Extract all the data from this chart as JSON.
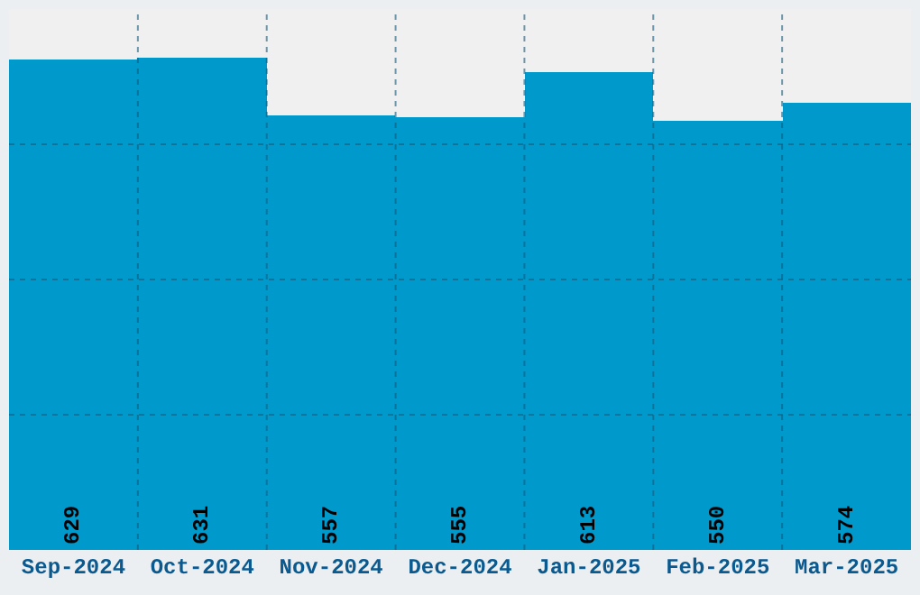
{
  "chart_data": {
    "type": "bar",
    "categories": [
      "Sep-2024",
      "Oct-2024",
      "Nov-2024",
      "Dec-2024",
      "Jan-2025",
      "Feb-2025",
      "Mar-2025"
    ],
    "values": [
      629,
      631,
      557,
      555,
      613,
      550,
      574
    ],
    "color": "#0099cc",
    "ylim": [
      0,
      693
    ],
    "grid": true,
    "data_labels": true,
    "tick_labels": "x"
  }
}
